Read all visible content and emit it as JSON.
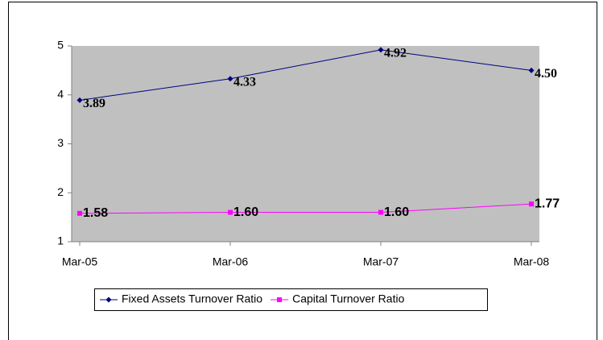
{
  "chart_data": {
    "type": "line",
    "categories": [
      "Mar-05",
      "Mar-06",
      "Mar-07",
      "Mar-08"
    ],
    "series": [
      {
        "name": "Fixed Assets Turnover Ratio",
        "color": "#000080",
        "values": [
          3.89,
          4.33,
          4.92,
          4.5
        ],
        "value_labels": [
          "3.89",
          "4.33",
          "4.92",
          "4.50"
        ]
      },
      {
        "name": "Capital Turnover Ratio",
        "color": "#ff00ff",
        "values": [
          1.58,
          1.6,
          1.6,
          1.77
        ],
        "value_labels": [
          "1.58",
          "1.60",
          "1.60",
          "1.77"
        ]
      }
    ],
    "ylim": [
      1,
      5
    ],
    "yticks": [
      1,
      2,
      3,
      4,
      5
    ],
    "legend": "bottom",
    "plot_background": "#c0c0c0"
  }
}
